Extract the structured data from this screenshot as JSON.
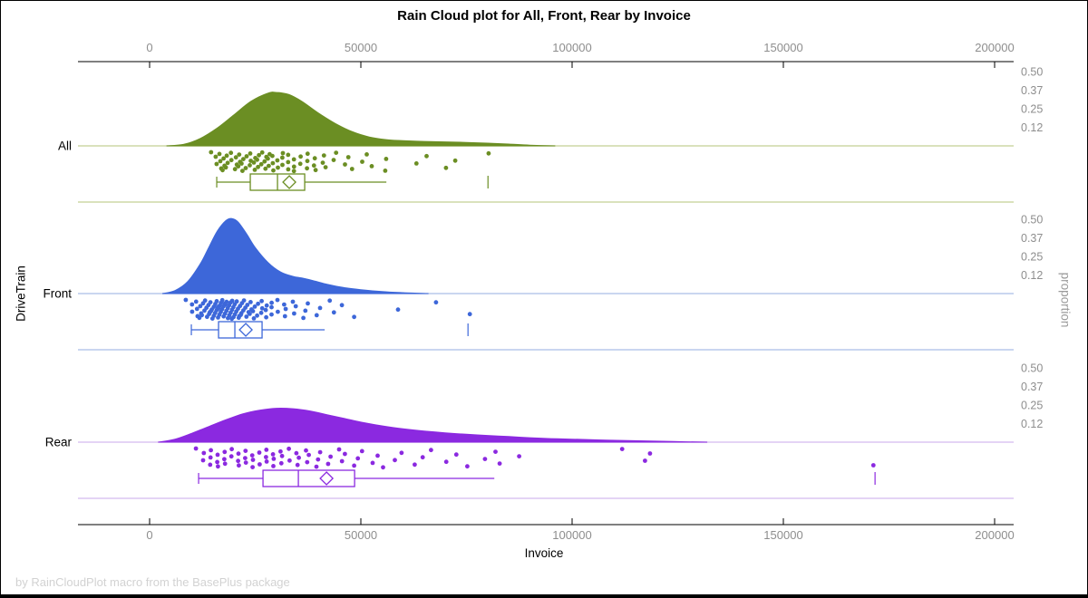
{
  "title": "Rain Cloud plot for All, Front, Rear by Invoice",
  "footer": "by RainCloudPlot macro from the BasePlus package",
  "x_axis": {
    "label": "Invoice",
    "ticks": [
      0,
      50000,
      100000,
      150000,
      200000
    ],
    "tick_labels": [
      "0",
      "50000",
      "100000",
      "150000",
      "200000"
    ],
    "mirrored_top_axis": true
  },
  "y_axis": {
    "label": "DriveTrain",
    "categories": [
      "All",
      "Front",
      "Rear"
    ]
  },
  "y2_axis": {
    "label": "proportion",
    "tick_labels": [
      "0.50",
      "0.37",
      "0.25",
      "0.12"
    ],
    "tick_values": [
      0.5,
      0.375,
      0.25,
      0.125
    ]
  },
  "chart_data": {
    "type": "raincloud",
    "x_unit": "Invoice",
    "groups": [
      {
        "name": "All",
        "color": "#6B8E23",
        "pale_color": "#cdd8a6",
        "density": {
          "x": [
            4000,
            8000,
            12000,
            16000,
            20000,
            24000,
            28000,
            30000,
            33000,
            36000,
            40000,
            44000,
            48000,
            52000,
            56000,
            60000,
            65000,
            70000,
            75000,
            80000,
            85000,
            90000,
            96000
          ],
          "proportion": [
            0,
            0.01,
            0.05,
            0.12,
            0.21,
            0.3,
            0.355,
            0.36,
            0.345,
            0.3,
            0.22,
            0.15,
            0.095,
            0.06,
            0.042,
            0.035,
            0.03,
            0.027,
            0.023,
            0.018,
            0.012,
            0.005,
            0
          ]
        },
        "box": {
          "whisker_low": 15890,
          "q1": 23830,
          "median": 30270,
          "q3": 36710,
          "whisker_high": 56040,
          "mean": 33060,
          "outliers": [
            80090
          ]
        },
        "rain": [
          15200,
          15600,
          15900,
          16300,
          16600,
          16900,
          17200,
          17500,
          17800,
          18100,
          18400,
          18700,
          19100,
          19500,
          20000,
          20300,
          20600,
          20900,
          21200,
          21500,
          21800,
          22100,
          22400,
          22700,
          23000,
          23300,
          23700,
          24100,
          24500,
          24900,
          25200,
          25500,
          25800,
          26100,
          26400,
          26700,
          27000,
          27300,
          27600,
          27900,
          28200,
          28500,
          28900,
          29300,
          29700,
          30100,
          30500,
          30900,
          31300,
          31800,
          32300,
          32800,
          33300,
          33800,
          34300,
          34800,
          35400,
          36000,
          36600,
          37200,
          37800,
          38400,
          39100,
          39800,
          40600,
          41400,
          42300,
          43300,
          44400,
          45600,
          46900,
          48300,
          49800,
          51400,
          53100,
          55600,
          55900,
          63800,
          65300,
          70400,
          71700,
          80100
        ]
      },
      {
        "name": "Front",
        "color": "#3D67D9",
        "pale_color": "#b9c8ec",
        "density": {
          "x": [
            3000,
            6000,
            9000,
            12000,
            14000,
            16000,
            18000,
            19500,
            21000,
            23000,
            25000,
            28000,
            31000,
            34000,
            36000,
            39000,
            42000,
            46000,
            50000,
            55000,
            60000,
            66000
          ],
          "proportion": [
            0,
            0.02,
            0.08,
            0.2,
            0.31,
            0.42,
            0.49,
            0.505,
            0.48,
            0.4,
            0.31,
            0.21,
            0.145,
            0.115,
            0.105,
            0.085,
            0.062,
            0.04,
            0.026,
            0.014,
            0.006,
            0
          ]
        },
        "box": {
          "whisker_low": 9880,
          "q1": 16320,
          "median": 20180,
          "q3": 26620,
          "whisker_high": 41440,
          "mean": 22760,
          "outliers": [
            75360
          ]
        },
        "rain": [
          9200,
          9800,
          10300,
          10700,
          11100,
          11400,
          11700,
          12000,
          12300,
          12600,
          12800,
          13000,
          13200,
          13400,
          13600,
          13800,
          14000,
          14200,
          14400,
          14600,
          14800,
          15000,
          15150,
          15300,
          15450,
          15600,
          15750,
          15900,
          16050,
          16200,
          16350,
          16500,
          16650,
          16800,
          16950,
          17100,
          17250,
          17400,
          17550,
          17700,
          17850,
          18000,
          18150,
          18300,
          18450,
          18600,
          18750,
          18900,
          19050,
          19200,
          19350,
          19500,
          19650,
          19800,
          19950,
          20100,
          20250,
          20400,
          20600,
          20800,
          21000,
          21200,
          21400,
          21600,
          21800,
          22000,
          22200,
          22400,
          22600,
          22800,
          23000,
          23300,
          23600,
          23900,
          24200,
          24500,
          24800,
          25100,
          25400,
          25700,
          26000,
          26400,
          26800,
          27200,
          27600,
          28000,
          28500,
          29000,
          29500,
          30000,
          30600,
          31200,
          31900,
          32600,
          33400,
          34200,
          35100,
          36000,
          37000,
          38100,
          39300,
          40600,
          42000,
          43500,
          45900,
          47900,
          58800,
          68300,
          75400
        ]
      },
      {
        "name": "Rear",
        "color": "#8B29E0",
        "pale_color": "#dcc6f2",
        "density": {
          "x": [
            2000,
            6000,
            10000,
            14000,
            18000,
            22000,
            26000,
            30000,
            34000,
            38000,
            42000,
            46000,
            50000,
            55000,
            60000,
            65000,
            70000,
            75000,
            80000,
            85000,
            90000,
            95000,
            100000,
            108000,
            116000,
            124000,
            132000
          ],
          "proportion": [
            0,
            0.02,
            0.06,
            0.105,
            0.15,
            0.19,
            0.215,
            0.228,
            0.225,
            0.21,
            0.185,
            0.16,
            0.135,
            0.11,
            0.09,
            0.075,
            0.063,
            0.053,
            0.045,
            0.038,
            0.03,
            0.024,
            0.02,
            0.014,
            0.009,
            0.004,
            0
          ]
        },
        "box": {
          "whisker_low": 11600,
          "q1": 26840,
          "median": 35210,
          "q3": 48520,
          "whisker_high": 81590,
          "mean": 41870,
          "outliers": [
            171700
          ]
        },
        "rain": [
          11600,
          12400,
          13100,
          13700,
          14300,
          14900,
          15500,
          16100,
          16700,
          17300,
          17900,
          18500,
          19100,
          19700,
          20300,
          20900,
          21500,
          22100,
          22700,
          23300,
          23900,
          24500,
          25100,
          25700,
          26300,
          26900,
          27500,
          28100,
          28700,
          29300,
          29900,
          30600,
          31300,
          32000,
          32700,
          33400,
          34100,
          34900,
          35700,
          36500,
          37300,
          38200,
          39100,
          40000,
          41000,
          42000,
          43100,
          44200,
          45400,
          46600,
          47900,
          49300,
          50800,
          52400,
          54100,
          55900,
          57800,
          59900,
          62100,
          64500,
          67000,
          69700,
          72600,
          75700,
          79000,
          82000,
          83500,
          87200,
          112100,
          116600,
          118300,
          171700
        ]
      }
    ]
  },
  "style": {
    "axis_color": "#000000",
    "tick_label_color": "#8e8e8e",
    "footer_color": "#d2d2d2"
  }
}
